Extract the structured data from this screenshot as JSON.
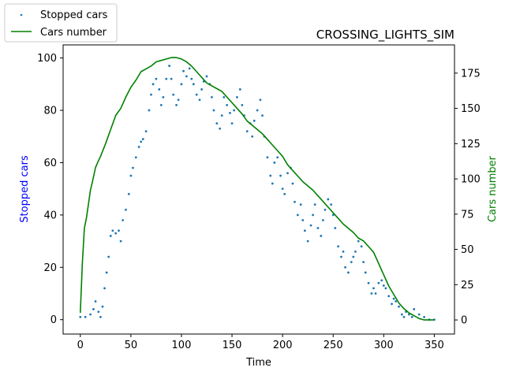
{
  "chart_data": {
    "type": "scatter+line",
    "title": "CROSSING_LIGHTS_SIM",
    "xlabel": "Time",
    "ylabel_left": "Stopped cars",
    "ylabel_right": "Cars number",
    "xlim": [
      -17,
      370
    ],
    "ylim_left": [
      -5.5,
      105
    ],
    "ylim_right": [
      -10,
      195
    ],
    "xticks": [
      0,
      50,
      100,
      150,
      200,
      250,
      300,
      350
    ],
    "yticks_left": [
      0,
      20,
      40,
      60,
      80,
      100
    ],
    "yticks_right": [
      0,
      25,
      50,
      75,
      100,
      125,
      150,
      175
    ],
    "legend_location": "upper-left, outside plot",
    "colors": {
      "stopped": "#1f77b4",
      "cars": "#008000",
      "left_label": "#0000ff",
      "right_label": "#008000"
    },
    "series": [
      {
        "name": "Stopped cars",
        "kind": "scatter",
        "axis": "left",
        "x": [
          0,
          5,
          10,
          13,
          15,
          18,
          20,
          22,
          24,
          26,
          28,
          30,
          32,
          35,
          38,
          40,
          42,
          45,
          48,
          50,
          52,
          55,
          58,
          60,
          62,
          65,
          68,
          70,
          72,
          75,
          78,
          80,
          82,
          85,
          88,
          90,
          92,
          95,
          97,
          100,
          102,
          105,
          108,
          110,
          112,
          115,
          118,
          120,
          122,
          125,
          128,
          130,
          132,
          135,
          138,
          140,
          142,
          145,
          148,
          150,
          152,
          155,
          158,
          160,
          162,
          165,
          168,
          170,
          172,
          175,
          178,
          180,
          182,
          185,
          188,
          190,
          192,
          195,
          198,
          200,
          202,
          205,
          208,
          210,
          212,
          215,
          218,
          220,
          222,
          225,
          228,
          230,
          232,
          235,
          238,
          240,
          242,
          245,
          248,
          250,
          252,
          255,
          258,
          260,
          262,
          265,
          268,
          270,
          272,
          275,
          278,
          280,
          282,
          285,
          288,
          290,
          292,
          295,
          298,
          300,
          302,
          305,
          308,
          310,
          312,
          315,
          318,
          320,
          322,
          325,
          328,
          330,
          335,
          340,
          345,
          350
        ],
        "y": [
          1,
          1,
          2,
          4,
          7,
          3,
          1,
          5,
          12,
          18,
          24,
          32,
          34,
          33,
          34,
          30,
          38,
          42,
          48,
          55,
          58,
          62,
          66,
          68,
          69,
          72,
          80,
          86,
          90,
          92,
          88,
          82,
          85,
          92,
          97,
          92,
          86,
          82,
          84,
          90,
          95,
          93,
          96,
          92,
          90,
          86,
          84,
          88,
          91,
          93,
          90,
          85,
          80,
          75,
          73,
          78,
          85,
          82,
          79,
          75,
          80,
          85,
          88,
          82,
          78,
          72,
          75,
          70,
          76,
          80,
          84,
          78,
          70,
          62,
          55,
          52,
          60,
          62,
          55,
          50,
          48,
          56,
          58,
          52,
          45,
          40,
          44,
          38,
          34,
          30,
          36,
          40,
          44,
          35,
          32,
          38,
          42,
          46,
          44,
          40,
          35,
          28,
          24,
          26,
          20,
          18,
          22,
          24,
          26,
          30,
          28,
          22,
          18,
          14,
          10,
          12,
          10,
          14,
          15,
          13,
          12,
          9,
          6,
          8,
          7,
          5,
          2,
          1,
          3,
          2,
          1,
          4,
          2,
          1,
          0,
          0
        ]
      },
      {
        "name": "Cars number",
        "kind": "line",
        "axis": "right",
        "x": [
          0,
          2,
          4,
          6,
          8,
          10,
          12,
          15,
          18,
          20,
          25,
          30,
          35,
          40,
          45,
          50,
          55,
          60,
          65,
          70,
          75,
          80,
          85,
          90,
          95,
          100,
          105,
          110,
          115,
          120,
          125,
          130,
          135,
          140,
          145,
          150,
          155,
          160,
          165,
          170,
          175,
          180,
          185,
          190,
          195,
          200,
          205,
          210,
          215,
          220,
          225,
          230,
          235,
          240,
          245,
          250,
          255,
          260,
          265,
          270,
          275,
          280,
          285,
          290,
          295,
          300,
          305,
          310,
          315,
          320,
          325,
          330,
          335,
          340,
          345,
          350
        ],
        "y": [
          5,
          40,
          65,
          72,
          82,
          92,
          98,
          108,
          113,
          116,
          125,
          135,
          145,
          150,
          158,
          165,
          170,
          176,
          178,
          180,
          183,
          184,
          185,
          186,
          186,
          185,
          183,
          180,
          176,
          172,
          168,
          166,
          164,
          162,
          158,
          154,
          150,
          146,
          141,
          138,
          135,
          132,
          128,
          124,
          120,
          116,
          110,
          106,
          102,
          98,
          95,
          92,
          88,
          84,
          80,
          76,
          72,
          68,
          65,
          62,
          58,
          56,
          52,
          48,
          40,
          32,
          24,
          18,
          12,
          8,
          5,
          3,
          1,
          0,
          0,
          0
        ]
      }
    ]
  }
}
